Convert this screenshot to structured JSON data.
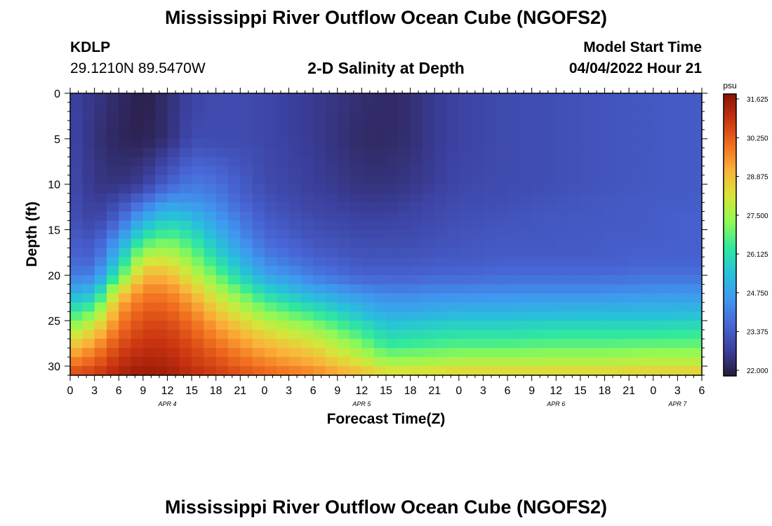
{
  "header": {
    "title": "Mississippi River Outflow Ocean Cube (NGOFS2)",
    "station_id": "KDLP",
    "station_coords": "29.1210N  89.5470W",
    "plot_title": "2-D Salinity at Depth",
    "model_start_label": "Model Start Time",
    "model_start_value": "04/04/2022 Hour 21"
  },
  "footer": {
    "title": "Mississippi River Outflow Ocean Cube (NGOFS2)"
  },
  "colors": {
    "colormap": [
      "#281b3c",
      "#3b3f9c",
      "#4866d6",
      "#3f98f0",
      "#27c2d9",
      "#30e89e",
      "#8ffa55",
      "#d6e63a",
      "#fbb33a",
      "#f16f1f",
      "#c93411",
      "#8a1205"
    ],
    "axis": "#000000"
  },
  "chart_data": {
    "type": "heatmap",
    "title": "2-D Salinity at Depth",
    "xlabel": "Forecast Time(Z)",
    "ylabel": "Depth (ft)",
    "x_tick_labels": [
      "0",
      "3",
      "6",
      "9",
      "12",
      "15",
      "18",
      "21",
      "0",
      "3",
      "6",
      "9",
      "12",
      "15",
      "18",
      "21",
      "0",
      "3",
      "6",
      "9",
      "12",
      "15",
      "18",
      "21",
      "0",
      "3",
      "6"
    ],
    "x_range_hours": [
      0,
      78
    ],
    "date_labels": [
      {
        "label": "APR 4",
        "hour": 12
      },
      {
        "label": "APR 5",
        "hour": 36
      },
      {
        "label": "APR 6",
        "hour": 60
      },
      {
        "label": "APR 7",
        "hour": 75
      }
    ],
    "y_ticks": [
      0,
      5,
      10,
      15,
      20,
      25,
      30
    ],
    "ylim": [
      0,
      31
    ],
    "y_inverted": true,
    "colorbar": {
      "unit": "psu",
      "min": 21.8,
      "max": 31.8,
      "ticks": [
        "31.625",
        "30.250",
        "28.875",
        "27.500",
        "26.125",
        "24.750",
        "23.375",
        "22.000"
      ]
    },
    "grid_hours_step": 1.5,
    "grid_depth_step": 1,
    "salinity_keyframes": {
      "hours": [
        0,
        3,
        6,
        9,
        12,
        15,
        18,
        21,
        24,
        30,
        36,
        39,
        42,
        45,
        48,
        54,
        60,
        66,
        72,
        78
      ],
      "depths": [
        0,
        5,
        10,
        12,
        14,
        16,
        18,
        20,
        22,
        24,
        26,
        28,
        30,
        31
      ],
      "values": [
        [
          22.8,
          22.5,
          22.2,
          21.9,
          22.3,
          22.8,
          23.0,
          23.0,
          22.9,
          22.6,
          22.3,
          22.2,
          22.3,
          22.6,
          22.8,
          23.0,
          23.1,
          23.2,
          23.3,
          23.4
        ],
        [
          22.9,
          22.4,
          22.1,
          22.0,
          22.3,
          23.0,
          23.0,
          23.0,
          22.9,
          22.6,
          22.2,
          22.2,
          22.3,
          22.6,
          22.8,
          23.0,
          23.1,
          23.2,
          23.3,
          23.4
        ],
        [
          23.0,
          22.5,
          22.4,
          22.7,
          23.5,
          24.0,
          23.8,
          23.4,
          23.0,
          22.7,
          22.4,
          22.4,
          22.5,
          22.7,
          22.9,
          23.0,
          23.1,
          23.2,
          23.3,
          23.4
        ],
        [
          23.1,
          22.6,
          23.0,
          23.8,
          24.6,
          24.5,
          24.2,
          23.6,
          23.2,
          22.8,
          22.6,
          22.6,
          22.7,
          22.9,
          23.0,
          23.1,
          23.2,
          23.3,
          23.4,
          23.4
        ],
        [
          23.2,
          22.8,
          23.6,
          25.0,
          25.8,
          25.4,
          24.7,
          24.0,
          23.4,
          23.0,
          22.8,
          22.8,
          22.9,
          23.0,
          23.1,
          23.2,
          23.3,
          23.3,
          23.4,
          23.5
        ],
        [
          23.4,
          23.2,
          24.5,
          26.3,
          26.9,
          26.3,
          25.3,
          24.4,
          23.7,
          23.2,
          23.0,
          23.0,
          23.0,
          23.1,
          23.2,
          23.3,
          23.3,
          23.4,
          23.4,
          23.5
        ],
        [
          23.6,
          23.5,
          25.4,
          27.8,
          28.0,
          27.1,
          26.0,
          25.0,
          24.1,
          23.5,
          23.2,
          23.2,
          23.2,
          23.3,
          23.3,
          23.4,
          23.4,
          23.4,
          23.5,
          23.5
        ],
        [
          24.0,
          24.1,
          26.5,
          29.0,
          29.0,
          28.0,
          26.9,
          25.8,
          24.8,
          24.0,
          23.5,
          23.5,
          23.5,
          23.6,
          23.6,
          23.7,
          23.7,
          23.7,
          23.8,
          23.8
        ],
        [
          25.0,
          25.4,
          28.5,
          29.8,
          29.8,
          29.0,
          27.9,
          27.0,
          26.0,
          25.0,
          24.4,
          24.2,
          24.2,
          24.3,
          24.3,
          24.4,
          24.4,
          24.4,
          24.5,
          24.5
        ],
        [
          26.2,
          27.0,
          29.5,
          30.3,
          30.3,
          29.7,
          28.8,
          28.0,
          27.2,
          26.3,
          25.3,
          24.9,
          24.9,
          25.0,
          25.1,
          25.1,
          25.2,
          25.2,
          25.2,
          25.3
        ],
        [
          27.5,
          28.5,
          30.0,
          30.7,
          30.7,
          30.2,
          29.5,
          28.9,
          28.3,
          27.5,
          26.3,
          25.7,
          25.8,
          25.9,
          26.0,
          26.0,
          26.1,
          26.1,
          26.1,
          26.2
        ],
        [
          28.8,
          29.6,
          30.6,
          31.0,
          31.0,
          30.6,
          30.1,
          29.6,
          29.1,
          28.5,
          27.3,
          26.5,
          26.6,
          26.7,
          26.8,
          26.8,
          26.9,
          26.9,
          27.0,
          27.0
        ],
        [
          30.0,
          30.4,
          31.1,
          31.4,
          31.3,
          30.9,
          30.6,
          30.2,
          29.9,
          29.3,
          28.4,
          27.8,
          27.8,
          27.9,
          28.0,
          28.0,
          28.0,
          28.0,
          28.1,
          28.1
        ],
        [
          30.6,
          30.8,
          31.3,
          31.6,
          31.5,
          31.1,
          30.8,
          30.5,
          30.2,
          29.8,
          29.0,
          28.6,
          28.6,
          28.6,
          28.7,
          28.7,
          28.7,
          28.7,
          28.8,
          28.8
        ]
      ]
    }
  }
}
